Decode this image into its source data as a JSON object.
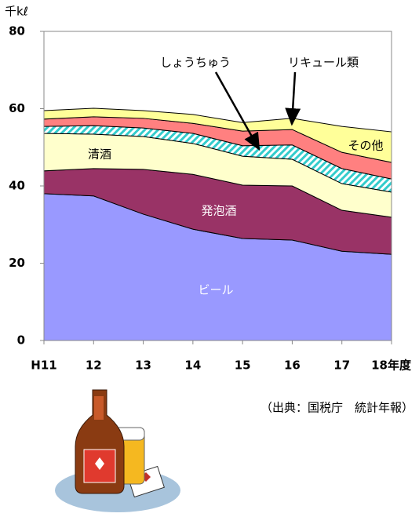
{
  "chart_data": {
    "type": "stacked_area",
    "y_label": "千kℓ",
    "source": "（出典：国税庁　統計年報）",
    "categories": [
      "H11",
      "12",
      "13",
      "14",
      "15",
      "16",
      "17",
      "18年度"
    ],
    "ylim": [
      0,
      80
    ],
    "yticks": [
      0,
      20,
      40,
      60,
      80
    ],
    "series": [
      {
        "name": "ビール",
        "color": "#9999ff",
        "values": [
          38.0,
          37.4,
          32.7,
          28.8,
          26.4,
          26.0,
          23.1,
          22.3
        ]
      },
      {
        "name": "発泡酒",
        "color": "#993366",
        "values": [
          5.9,
          7.1,
          11.6,
          14.2,
          13.8,
          14.0,
          10.6,
          9.6
        ]
      },
      {
        "name": "清酒",
        "color": "#ffffcc",
        "values": [
          9.7,
          8.9,
          8.5,
          8.0,
          7.5,
          6.9,
          6.9,
          6.5
        ]
      },
      {
        "name": "しょうちゅう",
        "color": "#33cccc",
        "hatch": true,
        "values": [
          1.8,
          2.2,
          2.2,
          2.6,
          2.7,
          3.7,
          3.9,
          3.4
        ]
      },
      {
        "name": "リキュール類",
        "color": "#ff8080",
        "values": [
          1.9,
          2.3,
          2.5,
          2.6,
          3.8,
          4.0,
          4.2,
          4.3
        ]
      },
      {
        "name": "その他",
        "color": "#ffff99",
        "values": [
          2.2,
          2.2,
          2.0,
          2.3,
          2.2,
          2.9,
          6.7,
          7.9
        ]
      }
    ]
  }
}
